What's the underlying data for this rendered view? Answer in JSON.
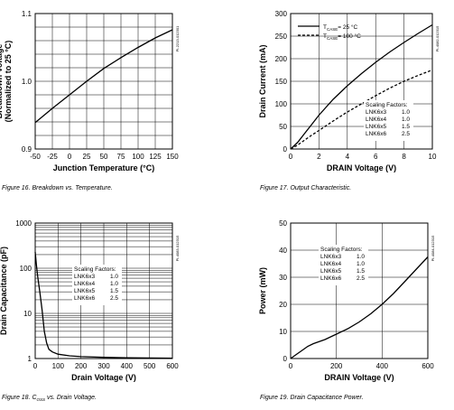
{
  "chart_data": [
    {
      "type": "line",
      "xlabel": "Junction Temperature (°C)",
      "ylabel": "Breakdown Voltage\n(Normalized to 25 °C)",
      "xlim": [
        -50,
        150
      ],
      "ylim": [
        0.9,
        1.1
      ],
      "xticks": [
        "-50",
        "-25",
        "0",
        "25",
        "50",
        "75",
        "100",
        "125",
        "150"
      ],
      "yticks": [
        "0.9",
        "1.0",
        "1.1"
      ],
      "grid": true,
      "doc_id": "PI-2213-012301",
      "caption": "Figure 16.  Breakdown vs. Temperature.",
      "series": [
        {
          "x": [
            -50,
            -25,
            0,
            25,
            50,
            75,
            100,
            125,
            150
          ],
          "y": [
            0.939,
            0.96,
            0.98,
            1.0,
            1.019,
            1.035,
            1.05,
            1.064,
            1.076
          ]
        }
      ]
    },
    {
      "type": "line",
      "xlabel": "DRAIN Voltage (V)",
      "ylabel": "Drain Current (mA)",
      "xlim": [
        0,
        10
      ],
      "ylim": [
        0,
        300
      ],
      "xticks": [
        "0",
        "2",
        "4",
        "6",
        "8",
        "10"
      ],
      "yticks": [
        "0",
        "50",
        "100",
        "150",
        "200",
        "250",
        "300"
      ],
      "grid": true,
      "doc_id": "PI-4082-012315",
      "caption": "Figure 17.  Output Characteristic.",
      "legend_position": "top-left",
      "legend": [
        {
          "pre": "T",
          "sub": "CASE",
          "post": "= 25 °C",
          "style": "solid"
        },
        {
          "pre": "T",
          "sub": "CASE",
          "post": "= 100 °C",
          "style": "dashed"
        }
      ],
      "scaling": {
        "title": "Scaling Factors:",
        "rows": [
          [
            "LNK6x3",
            "1.0"
          ],
          [
            "LNK6x4",
            "1.0"
          ],
          [
            "LNK6x5",
            "1.5"
          ],
          [
            "LNK6x6",
            "2.5"
          ]
        ]
      },
      "series": [
        {
          "style": "solid",
          "x": [
            0,
            0.5,
            1,
            1.5,
            2,
            3,
            4,
            5,
            6,
            7,
            8,
            9,
            10
          ],
          "y": [
            0,
            15,
            35,
            55,
            75,
            110,
            140,
            167,
            192,
            215,
            236,
            256,
            275
          ]
        },
        {
          "style": "dashed",
          "x": [
            0,
            0.5,
            1,
            1.5,
            2,
            3,
            4,
            5,
            6,
            7,
            8,
            9,
            10
          ],
          "y": [
            0,
            9,
            20,
            31,
            41,
            62,
            82,
            100,
            118,
            135,
            150,
            163,
            175
          ]
        }
      ]
    },
    {
      "type": "line",
      "xlabel": "Drain Voltage (V)",
      "ylabel": "Drain Capacitance (pF)",
      "xlim": [
        0,
        600
      ],
      "ylim": [
        1,
        1000
      ],
      "yscale": "log",
      "xticks": [
        "0",
        "100",
        "200",
        "300",
        "400",
        "500",
        "600"
      ],
      "yticks": [
        "1",
        "10",
        "100",
        "1000"
      ],
      "grid": true,
      "doc_id": "PI-4083-012315",
      "caption_pre": "Figure 18.  C",
      "caption_sub": "OSS",
      "caption_post": " vs. Drain Voltage.",
      "scaling": {
        "title": "Scaling Factors:",
        "rows": [
          [
            "LNK6x3",
            "1.0"
          ],
          [
            "LNK6x4",
            "1.0"
          ],
          [
            "LNK6x5",
            "1.5"
          ],
          [
            "LNK6x6",
            "2.5"
          ]
        ]
      },
      "series": [
        {
          "x": [
            0,
            5,
            12,
            20,
            30,
            40,
            50,
            60,
            75,
            100,
            150,
            200,
            300,
            400,
            500,
            600
          ],
          "y": [
            230,
            120,
            60,
            30,
            12,
            4,
            2.2,
            1.6,
            1.4,
            1.25,
            1.15,
            1.1,
            1.06,
            1.04,
            1.03,
            1.02
          ]
        }
      ]
    },
    {
      "type": "line",
      "xlabel": "DRAIN Voltage (V)",
      "ylabel": "Power (mW)",
      "xlim": [
        0,
        600
      ],
      "ylim": [
        0,
        50
      ],
      "xticks": [
        "0",
        "200",
        "400",
        "600"
      ],
      "yticks": [
        "0",
        "10",
        "20",
        "30",
        "40",
        "50"
      ],
      "grid": true,
      "doc_id": "PI-4084-012315",
      "caption": "Figure 19.  Drain Capacitance Power.",
      "scaling": {
        "title": "Scaling Factors:",
        "rows": [
          [
            "LNK6x3",
            "1.0"
          ],
          [
            "LNK6x4",
            "1.0"
          ],
          [
            "LNK6x5",
            "1.5"
          ],
          [
            "LNK6x6",
            "2.5"
          ]
        ]
      },
      "series": [
        {
          "x": [
            0,
            25,
            50,
            75,
            100,
            150,
            200,
            250,
            300,
            350,
            400,
            450,
            500,
            550,
            600
          ],
          "y": [
            0,
            1.5,
            3,
            4.5,
            5.5,
            7,
            9,
            11,
            13.5,
            16.5,
            20,
            24,
            28.5,
            33,
            37.5
          ]
        }
      ]
    }
  ]
}
